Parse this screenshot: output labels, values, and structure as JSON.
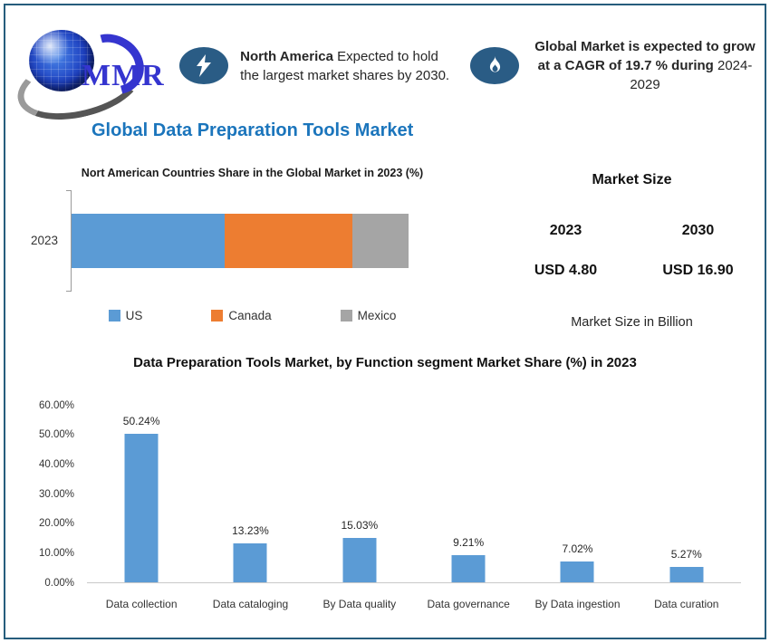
{
  "brand": {
    "name": "MMR"
  },
  "colors": {
    "accent_blue": "#1B75BC",
    "border": "#265D7C",
    "icon_navy": "#2A5C85",
    "bar_blue": "#5B9BD5",
    "canada_orange": "#ED7D31",
    "mexico_gray": "#A5A5A5",
    "logo_blue": "#3535CF"
  },
  "header": {
    "callout1": {
      "bold": "North America",
      "text": "Expected to hold the largest market shares by 2030."
    },
    "callout2": {
      "main": "Global Market is expected to grow at a CAGR of 19.7 % during",
      "suffix": "2024-2029"
    }
  },
  "page_title": "Global Data Preparation Tools Market",
  "market_size": {
    "heading": "Market Size",
    "columns": [
      {
        "year": "2023",
        "value": "USD 4.80"
      },
      {
        "year": "2030",
        "value": "USD 16.90"
      }
    ],
    "note": "Market Size in Billion"
  },
  "chart_data": [
    {
      "type": "bar",
      "orientation": "horizontal_stacked",
      "title": "Nort American Countries Share in the Global Market in 2023 (%)",
      "categories": [
        "2023"
      ],
      "series": [
        {
          "name": "US",
          "value": 45.5,
          "color": "#5B9BD5"
        },
        {
          "name": "Canada",
          "value": 37.8,
          "color": "#ED7D31"
        },
        {
          "name": "Mexico",
          "value": 16.7,
          "color": "#A5A5A5"
        }
      ],
      "xlim": [
        0,
        100
      ],
      "grid": false,
      "legend_position": "bottom"
    },
    {
      "type": "bar",
      "title": "Data Preparation Tools Market, by Function segment Market Share (%) in 2023",
      "categories": [
        "Data collection",
        "Data cataloging",
        "By Data quality",
        "Data governance",
        "By Data ingestion",
        "Data curation"
      ],
      "values": [
        50.24,
        13.23,
        15.03,
        9.21,
        7.02,
        5.27
      ],
      "data_labels": [
        "50.24%",
        "13.23%",
        "15.03%",
        "9.21%",
        "7.02%",
        "5.27%"
      ],
      "yticks": [
        "0.00%",
        "10.00%",
        "20.00%",
        "30.00%",
        "40.00%",
        "50.00%",
        "60.00%"
      ],
      "ylim": [
        0,
        60
      ],
      "bar_color": "#5B9BD5",
      "grid": false,
      "legend_position": "none"
    }
  ]
}
